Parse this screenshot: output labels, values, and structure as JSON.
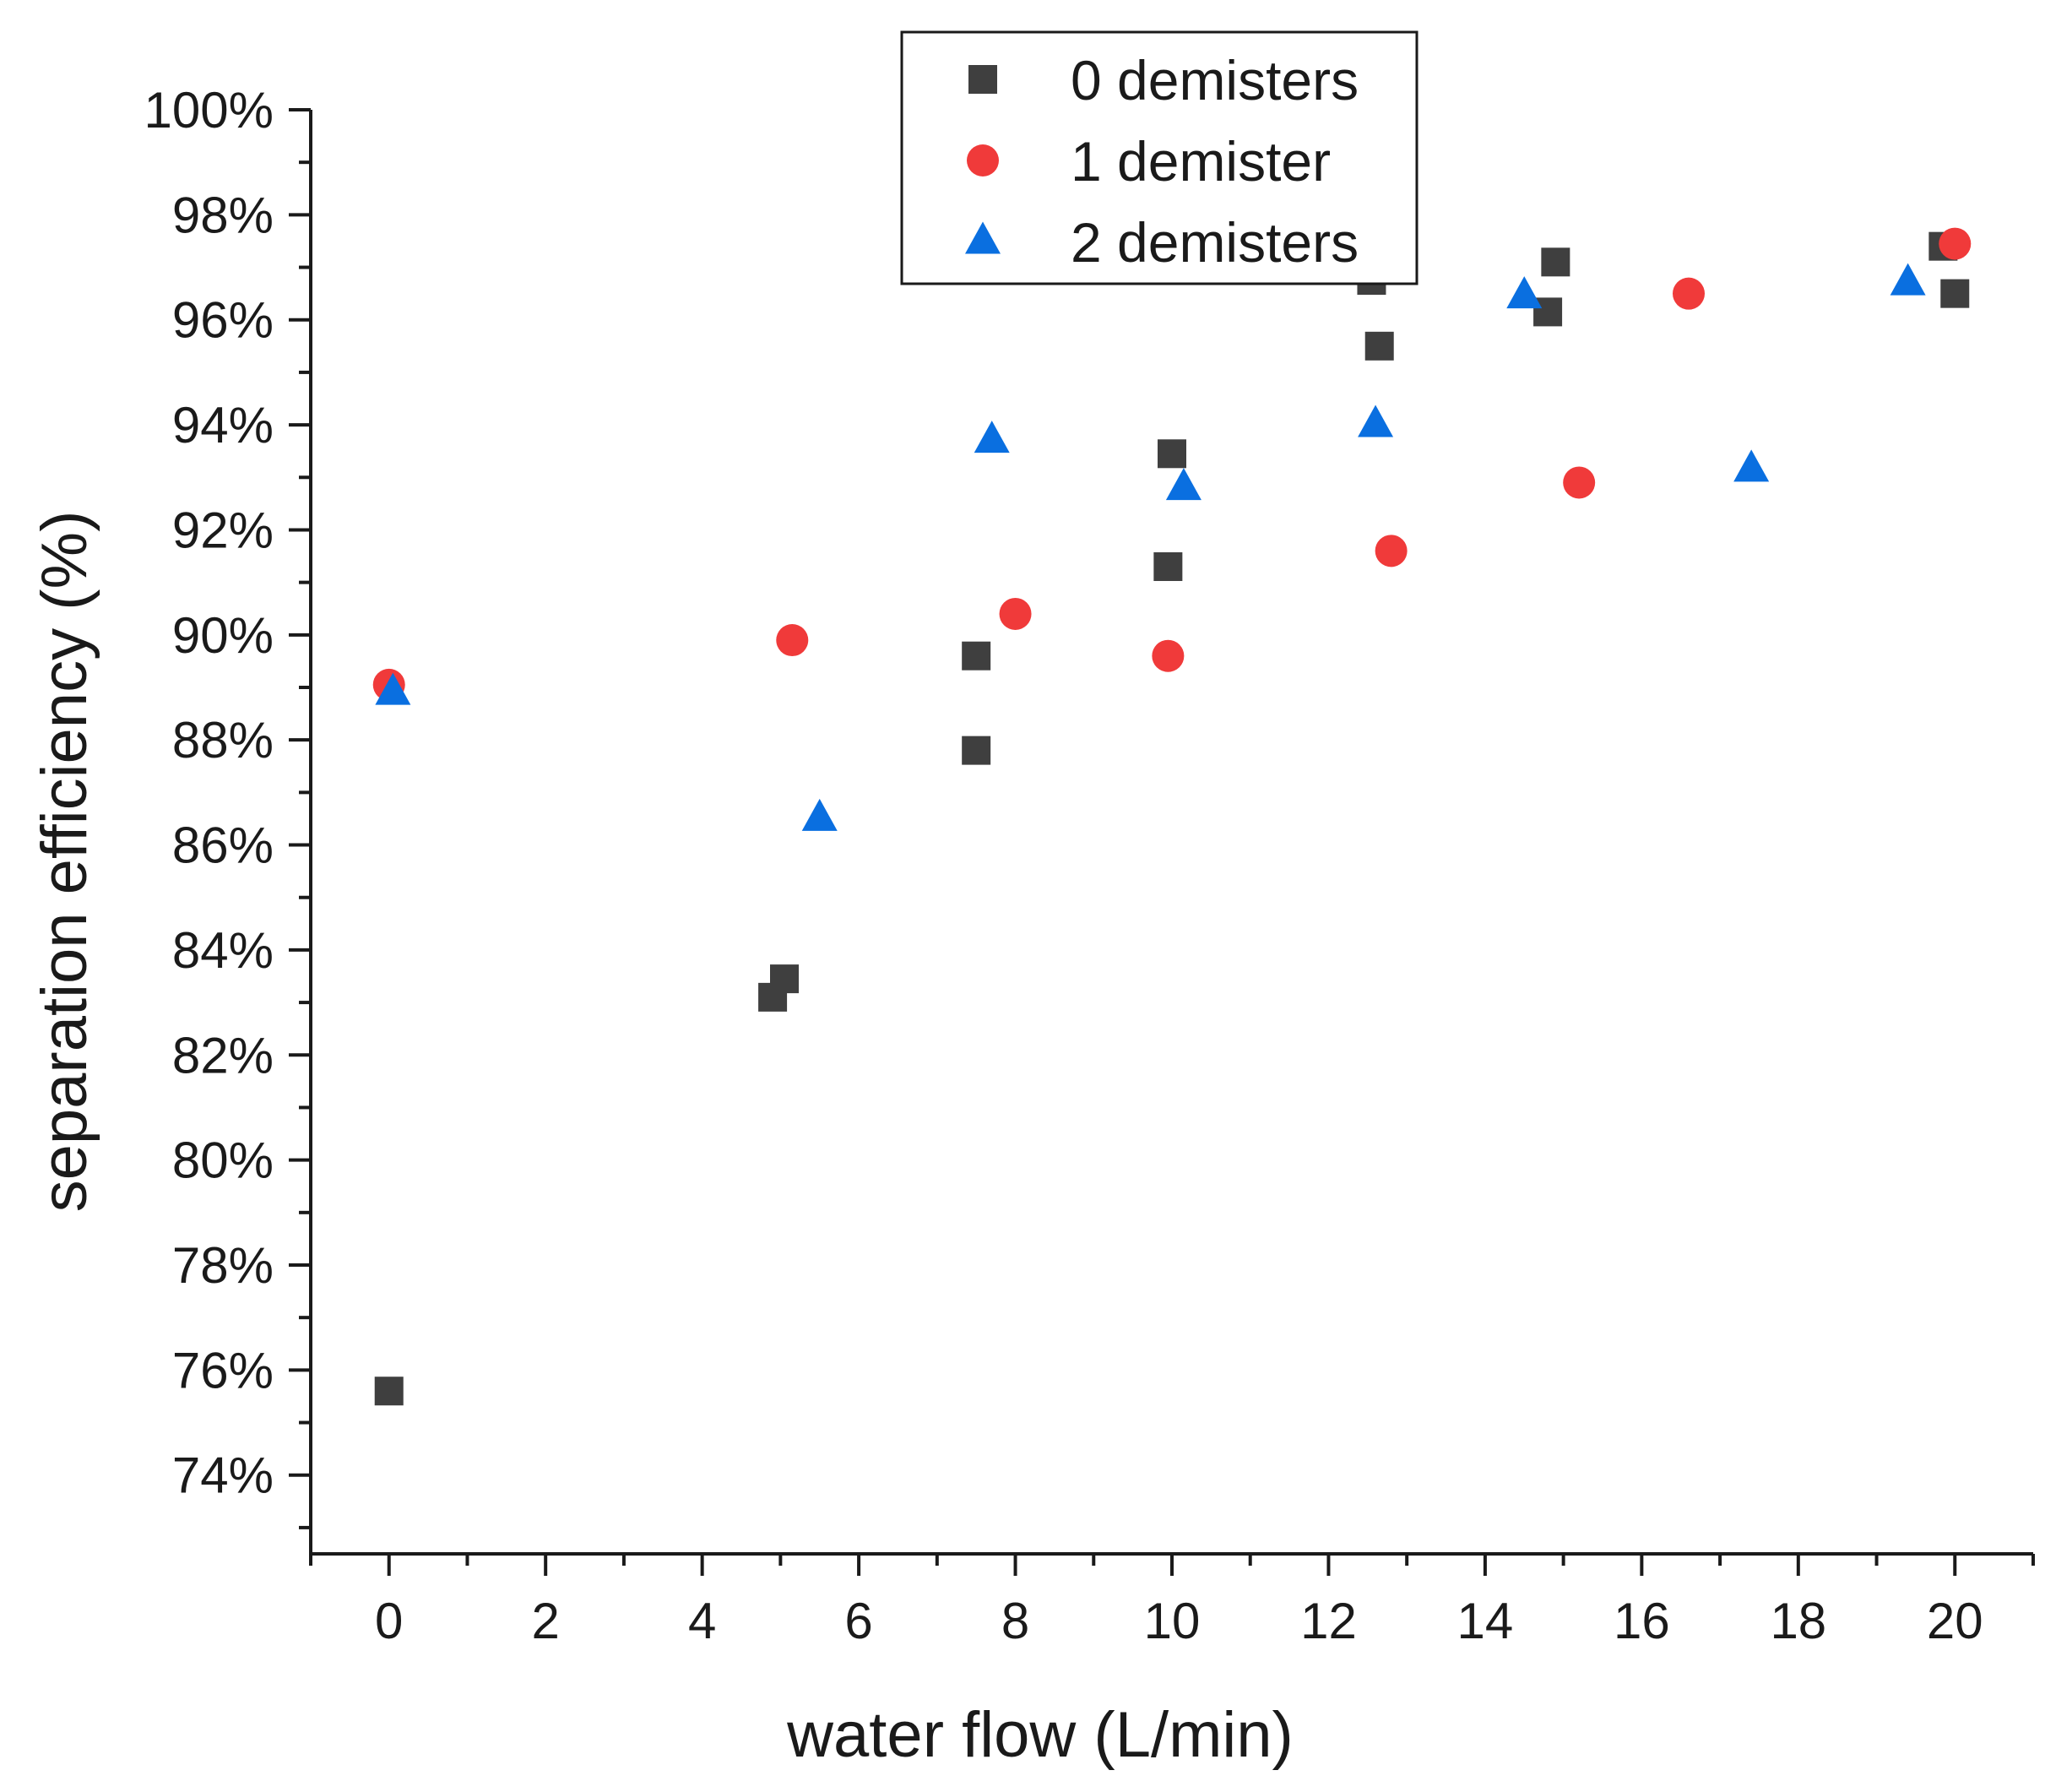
{
  "chart_data": {
    "type": "scatter",
    "title": "",
    "xlabel": "water flow (L/min)",
    "ylabel": "separation efficiency (%)",
    "xlim": [
      -1,
      21
    ],
    "ylim": [
      72.5,
      100
    ],
    "x_ticks": [
      0,
      2,
      4,
      6,
      8,
      10,
      12,
      14,
      16,
      18,
      20
    ],
    "x_tick_labels": [
      "0",
      "2",
      "4",
      "6",
      "8",
      "10",
      "12",
      "14",
      "16",
      "18",
      "20"
    ],
    "y_ticks": [
      74,
      76,
      78,
      80,
      82,
      84,
      86,
      88,
      90,
      92,
      94,
      96,
      98,
      100
    ],
    "y_tick_labels": [
      "74%",
      "76%",
      "78%",
      "80%",
      "82%",
      "84%",
      "86%",
      "88%",
      "90%",
      "92%",
      "94%",
      "96%",
      "98%",
      "100%"
    ],
    "grid": false,
    "legend_position": "top-center",
    "series": [
      {
        "name": "0 demisters",
        "marker": "square",
        "color": "#3f3f3f",
        "points": [
          [
            0,
            75.6
          ],
          [
            4.9,
            83.1
          ],
          [
            5.05,
            83.45
          ],
          [
            7.5,
            87.8
          ],
          [
            7.5,
            89.6
          ],
          [
            9.95,
            91.3
          ],
          [
            10.0,
            93.45
          ],
          [
            12.55,
            96.75
          ],
          [
            12.65,
            95.5
          ],
          [
            14.8,
            96.15
          ],
          [
            14.9,
            97.1
          ],
          [
            19.85,
            97.4
          ],
          [
            20.0,
            96.5
          ]
        ]
      },
      {
        "name": "1 demister",
        "marker": "circle",
        "color": "#f03a3a",
        "points": [
          [
            0,
            89.05
          ],
          [
            5.15,
            89.9
          ],
          [
            8.0,
            90.4
          ],
          [
            9.95,
            89.6
          ],
          [
            12.8,
            91.6
          ],
          [
            15.2,
            92.9
          ],
          [
            16.6,
            96.5
          ],
          [
            20.0,
            97.45
          ]
        ]
      },
      {
        "name": "2 demisters",
        "marker": "triangle",
        "color": "#0a6fe0",
        "points": [
          [
            0.05,
            88.9
          ],
          [
            5.5,
            86.5
          ],
          [
            7.7,
            93.7
          ],
          [
            10.15,
            92.8
          ],
          [
            12.6,
            94.0
          ],
          [
            14.5,
            96.45
          ],
          [
            17.4,
            93.15
          ],
          [
            19.4,
            96.7
          ]
        ]
      }
    ]
  }
}
